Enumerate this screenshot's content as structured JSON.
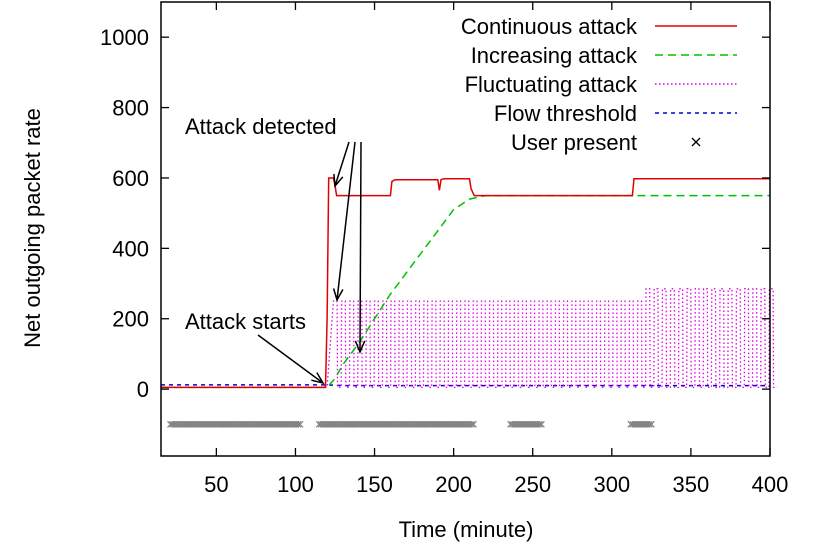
{
  "chart_data": {
    "type": "line",
    "title": "",
    "xlabel": "Time (minute)",
    "ylabel": "Net outgoing packet rate",
    "xlim": [
      15,
      400
    ],
    "ylim": [
      -190,
      1100
    ],
    "xticks": [
      50,
      100,
      150,
      200,
      250,
      300,
      350,
      400
    ],
    "yticks": [
      0,
      200,
      400,
      600,
      800,
      1000
    ],
    "grid": false,
    "legend_position": "top-right",
    "series": [
      {
        "name": "Continuous attack",
        "color": "#e00000",
        "style": "solid",
        "x": [
          15,
          119,
          120,
          121,
          124,
          125,
          126,
          127,
          160,
          161,
          163,
          190,
          191,
          192,
          194,
          210,
          211,
          213,
          300,
          301,
          313,
          314,
          400
        ],
        "y": [
          5,
          5,
          200,
          600,
          600,
          580,
          550,
          550,
          550,
          590,
          595,
          595,
          565,
          595,
          598,
          598,
          570,
          550,
          550,
          550,
          550,
          598,
          598
        ]
      },
      {
        "name": "Increasing attack",
        "color": "#00c000",
        "style": "dashed",
        "x": [
          15,
          120,
          125,
          130,
          140,
          150,
          160,
          170,
          180,
          190,
          200,
          210,
          215,
          220,
          400
        ],
        "y": [
          5,
          5,
          30,
          70,
          130,
          200,
          270,
          330,
          390,
          450,
          510,
          540,
          545,
          550,
          550
        ]
      },
      {
        "name": "Fluctuating attack",
        "color": "#e000e0",
        "style": "dotted",
        "x": [
          15,
          120,
          124,
          400
        ],
        "y": [
          5,
          5,
          250,
          280
        ],
        "fluctuation": {
          "start": 124,
          "end": 400,
          "period": 5.2,
          "high": 250,
          "low": 5,
          "high_after_320": 285
        }
      },
      {
        "name": "Flow threshold",
        "color": "#0000e0",
        "style": "dashed-fine",
        "x": [
          15,
          120,
          130,
          400
        ],
        "y": [
          12,
          12,
          10,
          10
        ]
      },
      {
        "name": "User present",
        "color": "#808080",
        "style": "markers",
        "y_value": -100,
        "ranges": [
          [
            21,
            103
          ],
          [
            115,
            213
          ],
          [
            236,
            256
          ],
          [
            312,
            326
          ]
        ]
      }
    ],
    "annotations": [
      {
        "text": "Attack detected",
        "anchor": [
          155,
          760
        ]
      },
      {
        "text": "Attack starts",
        "anchor": [
          85,
          192
        ]
      }
    ]
  }
}
